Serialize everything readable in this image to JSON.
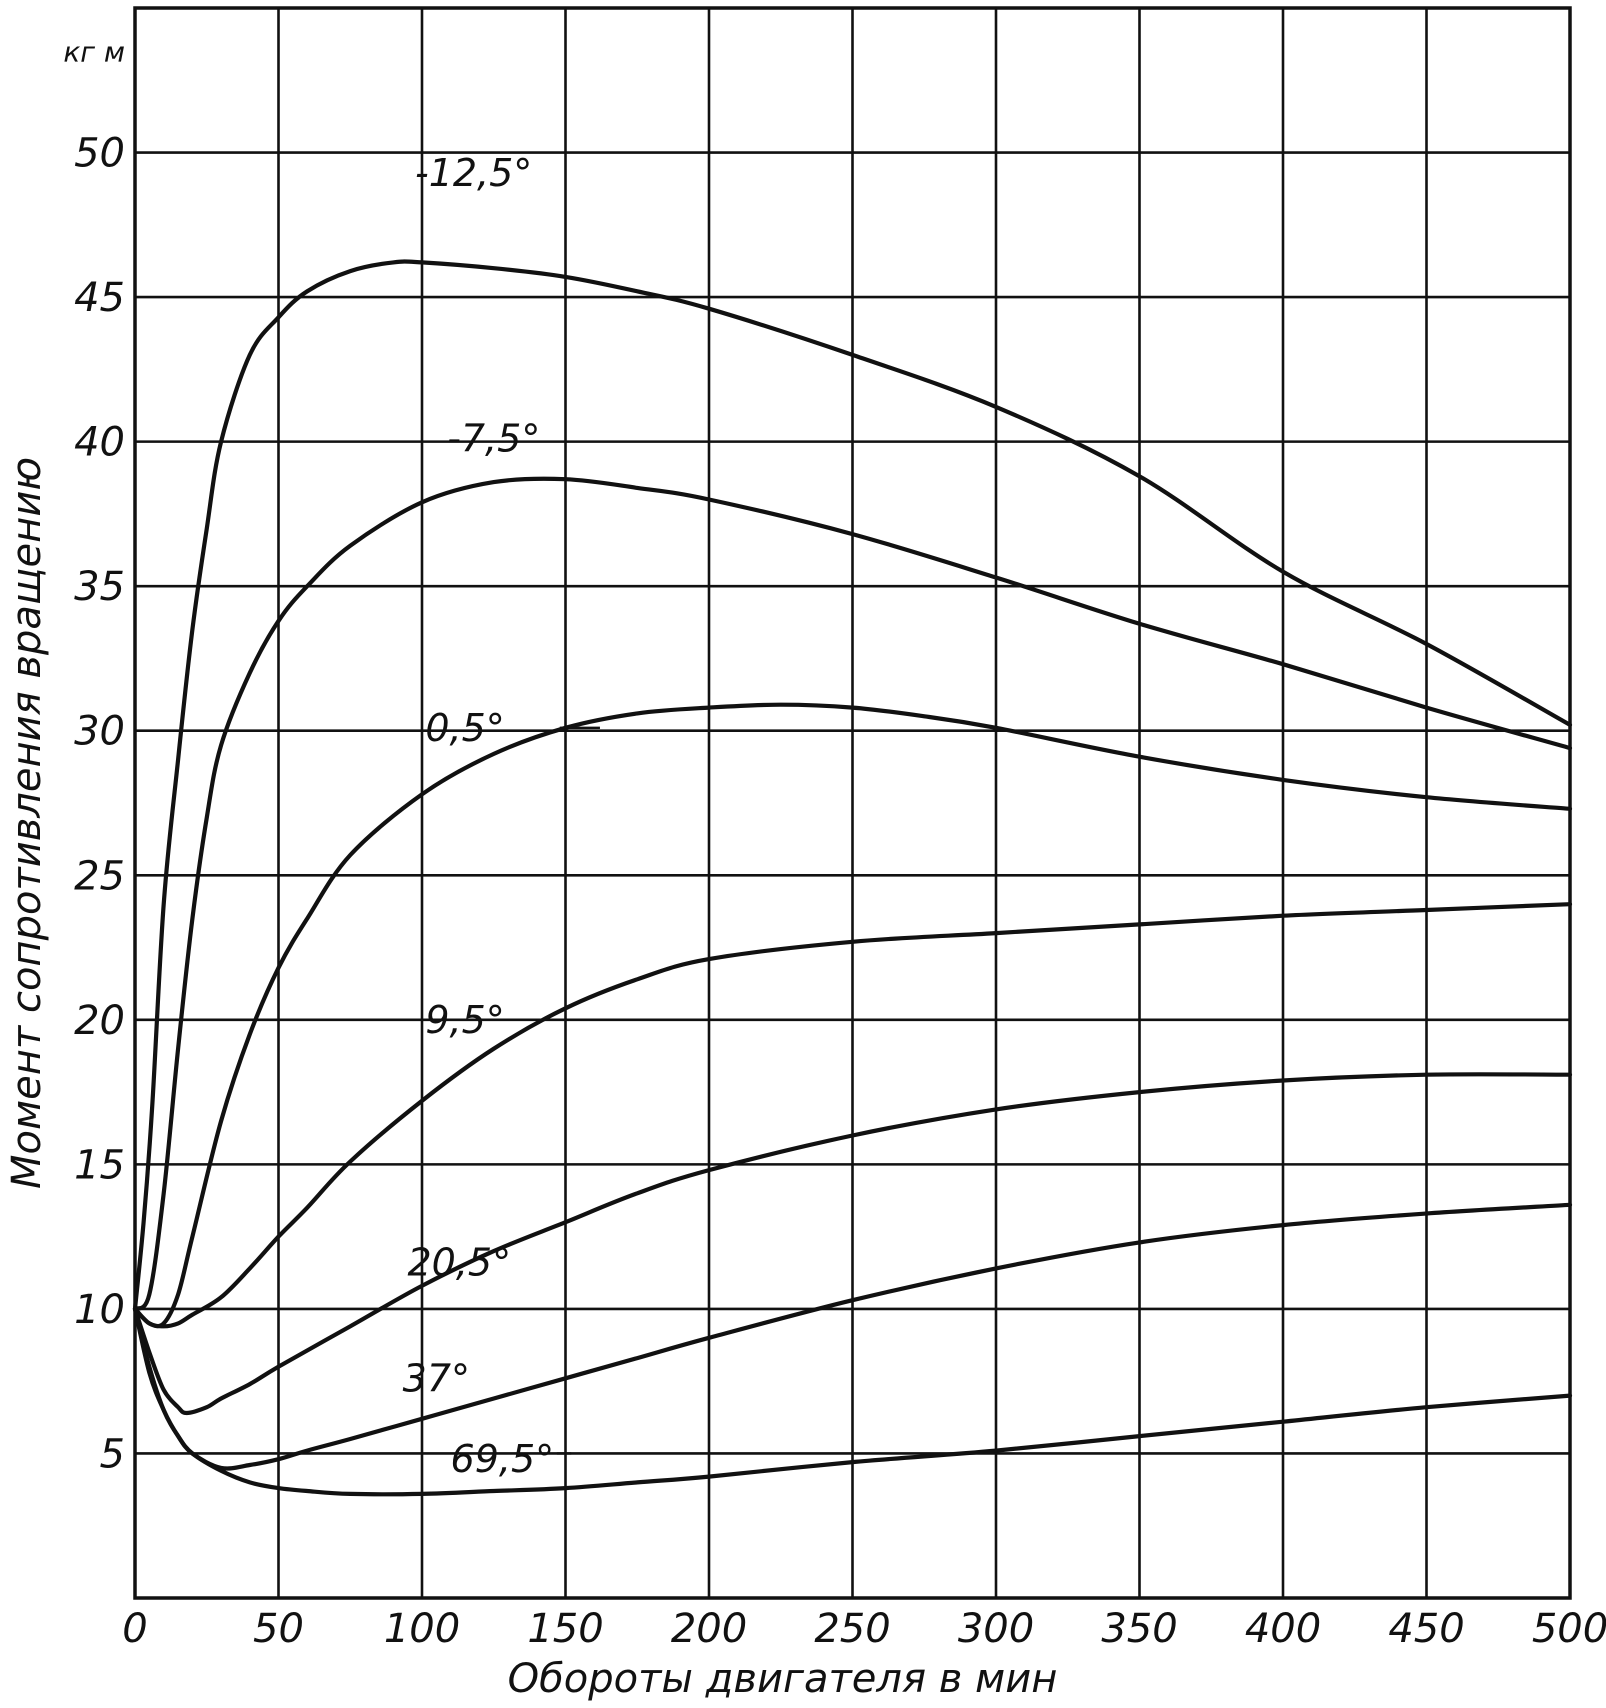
{
  "chart_data": {
    "type": "line",
    "title": "",
    "xlabel": "Обороты двигателя в мин",
    "ylabel": "Момент сопротивления вращению",
    "y_unit": "кг м",
    "xlim": [
      0,
      500
    ],
    "ylim": [
      0,
      55
    ],
    "x_ticks": [
      "0",
      "50",
      "100",
      "150",
      "200",
      "250",
      "300",
      "350",
      "400",
      "450",
      "500"
    ],
    "y_ticks": [
      "5",
      "10",
      "15",
      "20",
      "25",
      "30",
      "35",
      "40",
      "45",
      "50"
    ],
    "grid": true,
    "series": [
      {
        "name": "-12,5°",
        "x": [
          0,
          3,
          6,
          10,
          15,
          20,
          25,
          30,
          40,
          50,
          60,
          75,
          90,
          100,
          125,
          150,
          175,
          200,
          250,
          300,
          350,
          400,
          450,
          500
        ],
        "y": [
          10,
          13,
          17,
          24,
          29,
          33.5,
          37,
          40,
          43,
          44.3,
          45.2,
          45.9,
          46.2,
          46.2,
          46.0,
          45.7,
          45.2,
          44.6,
          43,
          41.2,
          38.8,
          35.5,
          33,
          30.2
        ]
      },
      {
        "name": "-7,5°",
        "x": [
          0,
          5,
          10,
          15,
          20,
          25,
          30,
          40,
          50,
          60,
          75,
          100,
          125,
          150,
          175,
          200,
          250,
          300,
          350,
          400,
          450,
          500
        ],
        "y": [
          10,
          10.5,
          14,
          19,
          23.5,
          27,
          29.5,
          32,
          33.8,
          35,
          36.4,
          37.9,
          38.6,
          38.7,
          38.4,
          38,
          36.8,
          35.3,
          33.7,
          32.3,
          30.8,
          29.4
        ]
      },
      {
        "name": "0,5°",
        "x": [
          0,
          5,
          10,
          15,
          20,
          30,
          40,
          50,
          60,
          75,
          100,
          125,
          150,
          175,
          200,
          225,
          250,
          275,
          300,
          350,
          400,
          450,
          500
        ],
        "y": [
          10,
          9.5,
          9.5,
          10.5,
          12.5,
          16.5,
          19.5,
          21.8,
          23.5,
          25.7,
          27.8,
          29.2,
          30.1,
          30.6,
          30.8,
          30.9,
          30.8,
          30.5,
          30.1,
          29.1,
          28.3,
          27.7,
          27.3
        ]
      },
      {
        "name": "9,5°",
        "x": [
          0,
          5,
          10,
          15,
          20,
          30,
          40,
          50,
          60,
          75,
          100,
          125,
          150,
          175,
          200,
          250,
          300,
          350,
          400,
          450,
          500
        ],
        "y": [
          10,
          9.5,
          9.4,
          9.5,
          9.8,
          10.4,
          11.4,
          12.5,
          13.5,
          15.1,
          17.2,
          19.0,
          20.4,
          21.4,
          22.1,
          22.7,
          23.0,
          23.3,
          23.6,
          23.8,
          24.0
        ]
      },
      {
        "name": "20,5°",
        "x": [
          0,
          5,
          10,
          15,
          18,
          25,
          30,
          40,
          50,
          75,
          100,
          125,
          150,
          175,
          200,
          250,
          300,
          350,
          400,
          450,
          500
        ],
        "y": [
          10,
          8.5,
          7.2,
          6.6,
          6.4,
          6.6,
          6.9,
          7.4,
          8.0,
          9.4,
          10.8,
          12.0,
          13.0,
          14.0,
          14.8,
          16.0,
          16.9,
          17.5,
          17.9,
          18.1,
          18.1
        ]
      },
      {
        "name": "37°",
        "x": [
          0,
          5,
          10,
          15,
          20,
          30,
          40,
          50,
          60,
          75,
          100,
          125,
          150,
          175,
          200,
          250,
          300,
          350,
          400,
          450,
          500
        ],
        "y": [
          10,
          8,
          6.5,
          5.6,
          5.0,
          4.5,
          4.6,
          4.8,
          5.1,
          5.5,
          6.2,
          6.9,
          7.6,
          8.3,
          9.0,
          10.3,
          11.4,
          12.3,
          12.9,
          13.3,
          13.6
        ]
      },
      {
        "name": "69,5°",
        "x": [
          0,
          5,
          10,
          15,
          20,
          30,
          40,
          50,
          60,
          75,
          100,
          125,
          150,
          175,
          200,
          250,
          300,
          350,
          400,
          450,
          500
        ],
        "y": [
          10,
          7.8,
          6.5,
          5.6,
          5.0,
          4.4,
          4.0,
          3.8,
          3.7,
          3.6,
          3.6,
          3.7,
          3.8,
          4.0,
          4.2,
          4.7,
          5.1,
          5.6,
          6.1,
          6.6,
          7.0
        ]
      }
    ]
  }
}
